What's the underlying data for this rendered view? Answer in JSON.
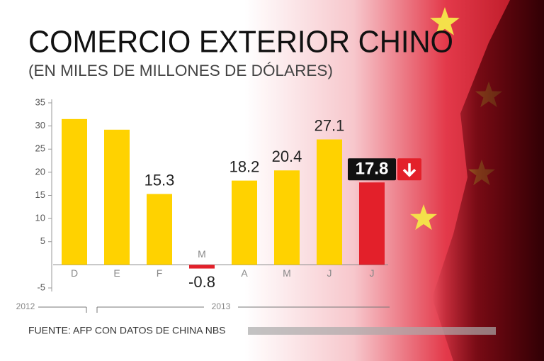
{
  "chart_data": {
    "type": "bar",
    "title": "COMERCIO EXTERIOR CHINO",
    "subtitle": "(EN MILES DE MILLONES DE DÓLARES)",
    "categories": [
      "D",
      "E",
      "F",
      "M",
      "A",
      "M",
      "J",
      "J"
    ],
    "values": [
      31.5,
      29.2,
      15.3,
      -0.8,
      18.2,
      20.4,
      27.1,
      17.8
    ],
    "value_labels": [
      null,
      null,
      "15.3",
      "-0.8",
      "18.2",
      "20.4",
      "27.1",
      "17.8"
    ],
    "colors": [
      "#ffd200",
      "#ffd200",
      "#ffd200",
      "#e3202a",
      "#ffd200",
      "#ffd200",
      "#ffd200",
      "#e3202a"
    ],
    "ylim": [
      -5,
      35
    ],
    "yticks": [
      35,
      30,
      25,
      20,
      15,
      10,
      5,
      -5
    ],
    "year_labels": [
      "2012",
      "2013"
    ],
    "source": "FUENTE: AFP CON DATOS DE CHINA NBS"
  }
}
